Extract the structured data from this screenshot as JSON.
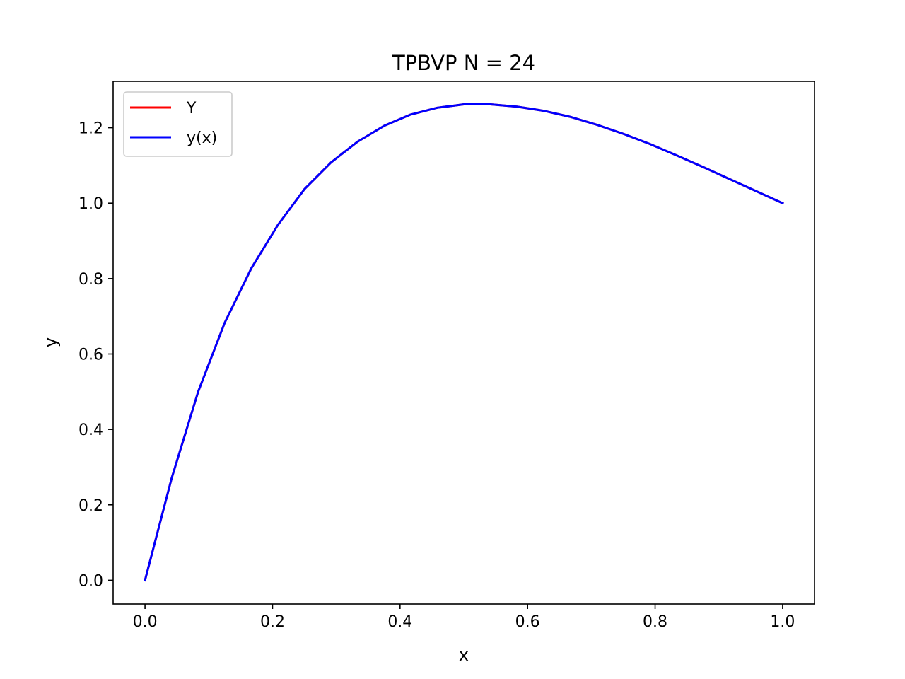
{
  "chart_data": {
    "type": "line",
    "title": "TPBVP N = 24",
    "xlabel": "x",
    "ylabel": "y",
    "xlim": [
      -0.05,
      1.05
    ],
    "ylim": [
      -0.063,
      1.323
    ],
    "xticks": [
      0.0,
      0.2,
      0.4,
      0.6,
      0.8,
      1.0
    ],
    "xtick_labels": [
      "0.0",
      "0.2",
      "0.4",
      "0.6",
      "0.8",
      "1.0"
    ],
    "yticks": [
      0.0,
      0.2,
      0.4,
      0.6,
      0.8,
      1.0,
      1.2
    ],
    "ytick_labels": [
      "0.0",
      "0.2",
      "0.4",
      "0.6",
      "0.8",
      "1.0",
      "1.2"
    ],
    "grid": false,
    "legend_position": "upper-left",
    "x": [
      0.0,
      0.04167,
      0.08333,
      0.125,
      0.16667,
      0.20833,
      0.25,
      0.29167,
      0.33333,
      0.375,
      0.41667,
      0.45833,
      0.5,
      0.54167,
      0.58333,
      0.625,
      0.66667,
      0.70833,
      0.75,
      0.79167,
      0.83333,
      0.875,
      0.91667,
      0.95833,
      1.0
    ],
    "series": [
      {
        "name": "Y",
        "color": "#ff0000",
        "values": [
          0.0,
          0.27,
          0.5,
          0.683,
          0.827,
          0.942,
          1.037,
          1.108,
          1.163,
          1.205,
          1.235,
          1.253,
          1.262,
          1.262,
          1.256,
          1.245,
          1.229,
          1.208,
          1.184,
          1.157,
          1.127,
          1.096,
          1.064,
          1.032,
          1.0
        ]
      },
      {
        "name": "y(x)",
        "color": "#0000ff",
        "values": [
          0.0,
          0.27,
          0.5,
          0.683,
          0.827,
          0.942,
          1.037,
          1.108,
          1.163,
          1.205,
          1.235,
          1.253,
          1.262,
          1.262,
          1.256,
          1.245,
          1.229,
          1.208,
          1.184,
          1.157,
          1.127,
          1.096,
          1.064,
          1.032,
          1.0
        ]
      }
    ]
  }
}
